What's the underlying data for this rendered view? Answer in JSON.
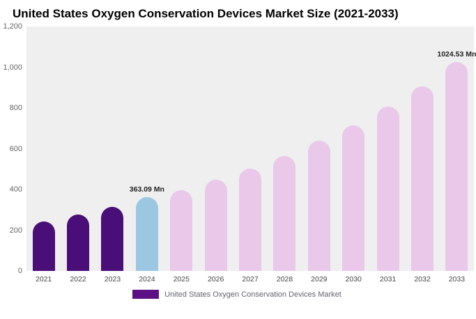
{
  "title": "United States Oxygen Conservation Devices Market Size (2021-2033)",
  "legend": {
    "label": "United States Oxygen Conservation Devices Market",
    "swatch_color": "#5b1185"
  },
  "colors": {
    "historical_purple": "#4a0e78",
    "highlight_blue": "#9cc7e1",
    "forecast_pink": "#e9c8ea",
    "plot_background": "#efefef"
  },
  "chart_data": {
    "type": "bar",
    "title": "United States Oxygen Conservation Devices Market Size (2021-2033)",
    "xlabel": "",
    "ylabel": "",
    "unit": "Mn",
    "ylim": [
      0,
      1200
    ],
    "grid": false,
    "legend_position": "bottom",
    "categories": [
      "2021",
      "2022",
      "2023",
      "2024",
      "2025",
      "2026",
      "2027",
      "2028",
      "2029",
      "2030",
      "2031",
      "2032",
      "2033"
    ],
    "values": [
      242,
      277,
      313,
      363.09,
      398,
      447,
      502,
      563,
      638,
      713,
      806,
      905,
      1024.53
    ],
    "bar_colors": [
      "#4a0e78",
      "#4a0e78",
      "#4a0e78",
      "#9cc7e1",
      "#e9c8ea",
      "#e9c8ea",
      "#e9c8ea",
      "#e9c8ea",
      "#e9c8ea",
      "#e9c8ea",
      "#e9c8ea",
      "#e9c8ea",
      "#e9c8ea"
    ],
    "annotations": [
      {
        "category": "2024",
        "text": "363.09 Mn"
      },
      {
        "category": "2033",
        "text": "1024.53 Mn"
      }
    ],
    "yticks": [
      {
        "value": 1200,
        "label": "1,200"
      },
      {
        "value": 1000,
        "label": "1,000"
      },
      {
        "value": 800,
        "label": "800"
      },
      {
        "value": 600,
        "label": "600"
      },
      {
        "value": 400,
        "label": "400"
      },
      {
        "value": 200,
        "label": "200"
      },
      {
        "value": 0,
        "label": "0"
      }
    ]
  }
}
